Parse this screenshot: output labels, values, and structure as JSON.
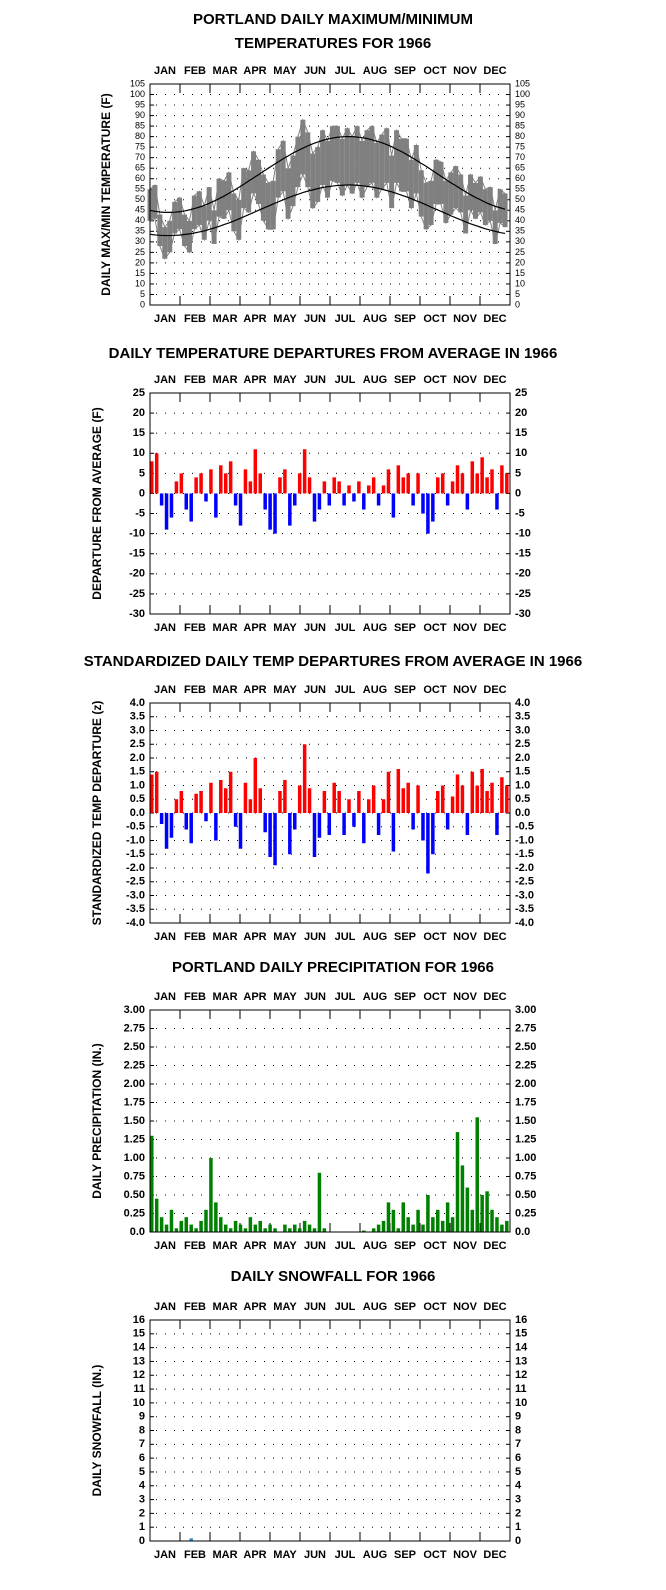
{
  "chart_data": [
    {
      "type": "range",
      "title": [
        "PORTLAND DAILY MAXIMUM/MINIMUM",
        "TEMPERATURES FOR 1966"
      ],
      "ylabel": "DAILY MAX/MIN TEMPERATURE (F)",
      "categories": [
        "JAN",
        "FEB",
        "MAR",
        "APR",
        "MAY",
        "JUN",
        "JUL",
        "AUG",
        "SEP",
        "OCT",
        "NOV",
        "DEC"
      ],
      "x": [
        1,
        6,
        11,
        16,
        21,
        26,
        31,
        36,
        41,
        46,
        51,
        56,
        61,
        66,
        71,
        76,
        81,
        86,
        91,
        96,
        101,
        106,
        111,
        116,
        121,
        126,
        131,
        136,
        141,
        146,
        151,
        156,
        161,
        166,
        171,
        176,
        181,
        186,
        191,
        196,
        201,
        206,
        211,
        216,
        221,
        226,
        231,
        236,
        241,
        246,
        251,
        256,
        261,
        266,
        271,
        276,
        281,
        286,
        291,
        296,
        301,
        306,
        311,
        316,
        321,
        326,
        331,
        336,
        341,
        346,
        351,
        356,
        361
      ],
      "xlim": [
        1,
        366
      ],
      "ylim": [
        0,
        105
      ],
      "yticks": [
        0,
        5,
        10,
        15,
        20,
        25,
        30,
        35,
        40,
        45,
        50,
        55,
        60,
        65,
        70,
        75,
        80,
        85,
        90,
        95,
        100,
        105
      ],
      "grid": true,
      "series": [
        {
          "color": "#808080",
          "values": [
            55,
            57,
            43,
            37,
            40,
            49,
            51,
            43,
            40,
            52,
            54,
            47,
            56,
            45,
            60,
            59,
            63,
            53,
            50,
            65,
            64,
            73,
            69,
            62,
            58,
            59,
            74,
            78,
            65,
            71,
            80,
            88,
            82,
            72,
            75,
            83,
            78,
            85,
            85,
            79,
            84,
            80,
            85,
            78,
            83,
            85,
            77,
            81,
            84,
            71,
            83,
            79,
            79,
            69,
            76,
            64,
            58,
            59,
            69,
            68,
            59,
            63,
            66,
            62,
            52,
            62,
            58,
            61,
            55,
            56,
            45,
            55,
            53
          ]
        },
        {
          "color": "#808080",
          "values": [
            40,
            41,
            28,
            22,
            25,
            34,
            36,
            28,
            25,
            36,
            38,
            31,
            40,
            29,
            42,
            41,
            45,
            35,
            31,
            46,
            44,
            53,
            48,
            40,
            36,
            36,
            51,
            54,
            41,
            47,
            56,
            62,
            56,
            46,
            49,
            57,
            51,
            59,
            58,
            52,
            57,
            53,
            58,
            51,
            56,
            58,
            51,
            55,
            58,
            46,
            58,
            54,
            54,
            46,
            53,
            42,
            36,
            38,
            48,
            48,
            39,
            43,
            46,
            44,
            34,
            45,
            41,
            44,
            38,
            40,
            29,
            39,
            37
          ]
        },
        {
          "color": "#000000",
          "values": [
            45,
            44.5,
            44.2,
            44,
            44,
            44.1,
            44.3,
            44.7,
            45.2,
            45.8,
            46.5,
            47.3,
            48.3,
            49.4,
            50.5,
            51.7,
            53.1,
            54.4,
            55.9,
            57.3,
            58.9,
            60.4,
            61.9,
            63.5,
            65,
            66.5,
            68,
            69.5,
            70.8,
            72.2,
            73.4,
            74.5,
            75.6,
            76.6,
            77.4,
            78.2,
            78.8,
            79.3,
            79.7,
            79.9,
            80,
            80,
            79.8,
            79.5,
            79.1,
            78.5,
            77.8,
            77.1,
            76.2,
            75.2,
            74,
            72.9,
            71.6,
            70.2,
            68.8,
            67.3,
            65.9,
            64.3,
            62.8,
            61.2,
            59.7,
            58.1,
            56.7,
            55.2,
            53.8,
            52.4,
            51.1,
            50,
            48.8,
            47.8,
            46.9,
            46.2,
            45.5
          ]
        },
        {
          "color": "#000000",
          "values": [
            33.6,
            33.3,
            33.1,
            33,
            33,
            33.1,
            33.2,
            33.5,
            33.8,
            34.2,
            34.7,
            35.2,
            35.9,
            36.6,
            37.3,
            38.2,
            39,
            39.9,
            40.9,
            41.9,
            42.9,
            43.9,
            45,
            46,
            47,
            48,
            49,
            50,
            50.9,
            51.8,
            52.6,
            53.4,
            54.1,
            54.7,
            55.3,
            55.8,
            56.2,
            56.5,
            56.8,
            56.9,
            57,
            57,
            56.9,
            56.7,
            56.4,
            56,
            55.6,
            55,
            54.4,
            53.8,
            53,
            52.2,
            51.4,
            50.5,
            49.5,
            48.6,
            47.6,
            46.5,
            45.5,
            44.5,
            43.5,
            42.4,
            41.4,
            40.5,
            39.5,
            38.6,
            37.8,
            37,
            36.2,
            35.6,
            35,
            34.4,
            34
          ]
        }
      ]
    },
    {
      "type": "bar",
      "title": [
        "DAILY TEMPERATURE DEPARTURES FROM AVERAGE IN 1966"
      ],
      "ylabel": "DEPARTURE FROM AVERAGE (F)",
      "categories": [
        "JAN",
        "FEB",
        "MAR",
        "APR",
        "MAY",
        "JUN",
        "JUL",
        "AUG",
        "SEP",
        "OCT",
        "NOV",
        "DEC"
      ],
      "x": [
        1,
        6,
        11,
        16,
        21,
        26,
        31,
        36,
        41,
        46,
        51,
        56,
        61,
        66,
        71,
        76,
        81,
        86,
        91,
        96,
        101,
        106,
        111,
        116,
        121,
        126,
        131,
        136,
        141,
        146,
        151,
        156,
        161,
        166,
        171,
        176,
        181,
        186,
        191,
        196,
        201,
        206,
        211,
        216,
        221,
        226,
        231,
        236,
        241,
        246,
        251,
        256,
        261,
        266,
        271,
        276,
        281,
        286,
        291,
        296,
        301,
        306,
        311,
        316,
        321,
        326,
        331,
        336,
        341,
        346,
        351,
        356,
        361
      ],
      "xlim": [
        1,
        366
      ],
      "ylim": [
        -30,
        25
      ],
      "yticks": [
        -30,
        -25,
        -20,
        -15,
        -10,
        -5,
        0,
        5,
        10,
        15,
        20,
        25
      ],
      "grid": true,
      "color": "#ff0000",
      "negative_color": "#0000ff",
      "values": [
        8,
        10,
        -3,
        -9,
        -6,
        3,
        5,
        -4,
        -7,
        4,
        5,
        -2,
        6,
        -6,
        7,
        5,
        8,
        -3,
        -8,
        6,
        3,
        11,
        5,
        -4,
        -9,
        -10,
        4,
        6,
        -8,
        -3,
        5,
        11,
        4,
        -7,
        -4,
        3,
        -3,
        4,
        3,
        -3,
        2,
        -2,
        3,
        -4,
        2,
        4,
        -3,
        2,
        6,
        -6,
        7,
        4,
        5,
        -3,
        5,
        -5,
        -10,
        -7,
        4,
        5,
        -3,
        3,
        7,
        5,
        -4,
        8,
        5,
        9,
        4,
        6,
        -4,
        7,
        5
      ]
    },
    {
      "type": "bar",
      "title": [
        "STANDARDIZED DAILY TEMP DEPARTURES FROM AVERAGE IN 1966"
      ],
      "ylabel": "STANDARDIZED TEMP DEPARTURE (z)",
      "categories": [
        "JAN",
        "FEB",
        "MAR",
        "APR",
        "MAY",
        "JUN",
        "JUL",
        "AUG",
        "SEP",
        "OCT",
        "NOV",
        "DEC"
      ],
      "x": [
        1,
        6,
        11,
        16,
        21,
        26,
        31,
        36,
        41,
        46,
        51,
        56,
        61,
        66,
        71,
        76,
        81,
        86,
        91,
        96,
        101,
        106,
        111,
        116,
        121,
        126,
        131,
        136,
        141,
        146,
        151,
        156,
        161,
        166,
        171,
        176,
        181,
        186,
        191,
        196,
        201,
        206,
        211,
        216,
        221,
        226,
        231,
        236,
        241,
        246,
        251,
        256,
        261,
        266,
        271,
        276,
        281,
        286,
        291,
        296,
        301,
        306,
        311,
        316,
        321,
        326,
        331,
        336,
        341,
        346,
        351,
        356,
        361
      ],
      "xlim": [
        1,
        366
      ],
      "ylim": [
        -4,
        4
      ],
      "yticks": [
        {
          "value": -4,
          "label": "-4.0"
        },
        -3.5,
        {
          "value": -3,
          "label": "-3.0"
        },
        -2.5,
        {
          "value": -2,
          "label": "-2.0"
        },
        -1.5,
        {
          "value": -1,
          "label": "-1.0"
        },
        -0.5,
        {
          "value": 0,
          "label": "0.0"
        },
        0.5,
        {
          "value": 1,
          "label": "1.0"
        },
        1.5,
        {
          "value": 2,
          "label": "2.0"
        },
        2.5,
        {
          "value": 3,
          "label": "3.0"
        },
        3.5,
        {
          "value": 4,
          "label": "4.0"
        }
      ],
      "grid": true,
      "color": "#ff0000",
      "negative_color": "#0000ff",
      "values": [
        1.4,
        1.5,
        -0.4,
        -1.3,
        -0.9,
        0.5,
        0.8,
        -0.6,
        -1.1,
        0.7,
        0.8,
        -0.3,
        1.1,
        -1.0,
        1.2,
        0.9,
        1.5,
        -0.5,
        -1.3,
        1.1,
        0.5,
        2.0,
        0.9,
        -0.7,
        -1.6,
        -1.9,
        0.8,
        1.2,
        -1.5,
        -0.6,
        1.0,
        2.5,
        0.9,
        -1.6,
        -0.9,
        0.8,
        -0.8,
        1.1,
        0.8,
        -0.8,
        0.5,
        -0.5,
        0.8,
        -1.1,
        0.5,
        1.0,
        -0.8,
        0.5,
        1.5,
        -1.4,
        1.6,
        0.9,
        1.1,
        -0.6,
        1.0,
        -1.0,
        -2.2,
        -1.5,
        0.8,
        1.0,
        -0.6,
        0.6,
        1.4,
        1.0,
        -0.8,
        1.5,
        1.0,
        1.6,
        0.8,
        1.1,
        -0.8,
        1.3,
        1.0
      ]
    },
    {
      "type": "bar",
      "title": [
        "PORTLAND DAILY PRECIPITATION FOR 1966"
      ],
      "ylabel": "DAILY PRECIPITATION (IN.)",
      "categories": [
        "JAN",
        "FEB",
        "MAR",
        "APR",
        "MAY",
        "JUN",
        "JUL",
        "AUG",
        "SEP",
        "OCT",
        "NOV",
        "DEC"
      ],
      "x": [
        1,
        6,
        11,
        16,
        21,
        26,
        31,
        36,
        41,
        46,
        51,
        56,
        61,
        66,
        71,
        76,
        81,
        86,
        91,
        96,
        101,
        106,
        111,
        116,
        121,
        126,
        131,
        136,
        141,
        146,
        151,
        156,
        161,
        166,
        171,
        176,
        181,
        186,
        191,
        196,
        201,
        206,
        211,
        216,
        221,
        226,
        231,
        236,
        241,
        246,
        251,
        256,
        261,
        266,
        271,
        276,
        281,
        286,
        291,
        296,
        301,
        306,
        311,
        316,
        321,
        326,
        331,
        336,
        341,
        346,
        351,
        356,
        361
      ],
      "xlim": [
        1,
        366
      ],
      "ylim": [
        0,
        3
      ],
      "yticks": [
        {
          "value": 0,
          "label": "0.0"
        },
        0.25,
        {
          "value": 0.5,
          "label": "0.50"
        },
        0.75,
        {
          "value": 1,
          "label": "1.00"
        },
        1.25,
        {
          "value": 1.5,
          "label": "1.50"
        },
        1.75,
        {
          "value": 2,
          "label": "2.00"
        },
        2.25,
        {
          "value": 2.5,
          "label": "2.50"
        },
        2.75,
        {
          "value": 3,
          "label": "3.00"
        }
      ],
      "grid": true,
      "color": "#008000",
      "values": [
        1.3,
        0.45,
        0.2,
        0.1,
        0.3,
        0.05,
        0.15,
        0.2,
        0.1,
        0.05,
        0.15,
        0.3,
        1.0,
        0.4,
        0.2,
        0.1,
        0.05,
        0.15,
        0.1,
        0.05,
        0.2,
        0.1,
        0.15,
        0.05,
        0.1,
        0.05,
        0,
        0.1,
        0.05,
        0.1,
        0.05,
        0.15,
        0.1,
        0.05,
        0.8,
        0.05,
        0,
        0,
        0,
        0,
        0,
        0,
        0,
        0.02,
        0,
        0.05,
        0.1,
        0.15,
        0.4,
        0.3,
        0.05,
        0.4,
        0.2,
        0.1,
        0.3,
        0.1,
        0.5,
        0.2,
        0.3,
        0.15,
        0.4,
        0.2,
        1.35,
        0.9,
        0.6,
        0.3,
        1.55,
        0.5,
        0.55,
        0.3,
        0.2,
        0.1,
        0.15
      ]
    },
    {
      "type": "bar",
      "title": [
        "DAILY SNOWFALL FOR 1966"
      ],
      "ylabel": "DAILY SNOWFALL (IN.)",
      "categories": [
        "JAN",
        "FEB",
        "MAR",
        "APR",
        "MAY",
        "JUN",
        "JUL",
        "AUG",
        "SEP",
        "OCT",
        "NOV",
        "DEC"
      ],
      "x": [
        1,
        6,
        11,
        16,
        21,
        26,
        31,
        36,
        41,
        46,
        51,
        56,
        61,
        66,
        71,
        76,
        81,
        86,
        91,
        96,
        101,
        106,
        111,
        116,
        121,
        126,
        131,
        136,
        141,
        146,
        151,
        156,
        161,
        166,
        171,
        176,
        181,
        186,
        191,
        196,
        201,
        206,
        211,
        216,
        221,
        226,
        231,
        236,
        241,
        246,
        251,
        256,
        261,
        266,
        271,
        276,
        281,
        286,
        291,
        296,
        301,
        306,
        311,
        316,
        321,
        326,
        331,
        336,
        341,
        346,
        351,
        356,
        361
      ],
      "xlim": [
        1,
        366
      ],
      "ylim": [
        0,
        16
      ],
      "yticks": [
        0,
        1,
        2,
        3,
        4,
        5,
        6,
        7,
        8,
        9,
        10,
        11,
        12,
        13,
        14,
        15,
        16
      ],
      "grid": true,
      "color": "#3a8fd0",
      "values": [
        0,
        0,
        0,
        0,
        0,
        0,
        0,
        0,
        0.2,
        0,
        0,
        0,
        0,
        0,
        0,
        0,
        0,
        0,
        0,
        0,
        0,
        0,
        0,
        0,
        0,
        0,
        0,
        0,
        0,
        0,
        0,
        0,
        0,
        0,
        0,
        0,
        0,
        0,
        0,
        0,
        0,
        0,
        0,
        0,
        0,
        0,
        0,
        0,
        0,
        0,
        0,
        0,
        0,
        0,
        0,
        0,
        0,
        0,
        0,
        0,
        0,
        0,
        0,
        0,
        0,
        0,
        0,
        0,
        0,
        0,
        0,
        0,
        0
      ]
    }
  ]
}
